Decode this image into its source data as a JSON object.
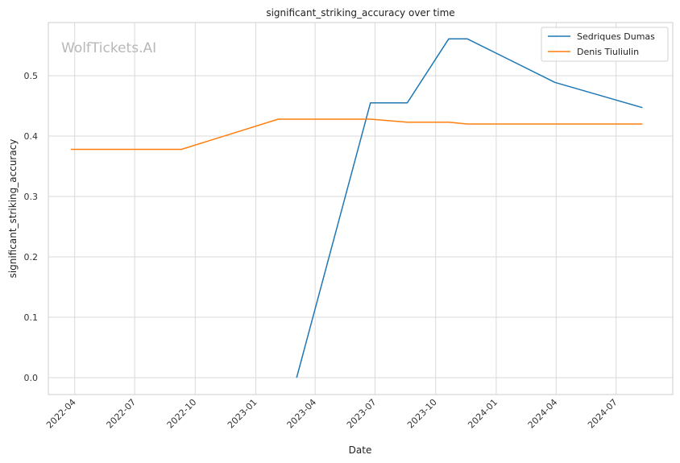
{
  "chart_data": {
    "type": "line",
    "title": "significant_striking_accuracy over time",
    "xlabel": "Date",
    "ylabel": "significant_striking_accuracy",
    "watermark": "WolfTickets.AI",
    "grid": true,
    "legend_position": "top-right",
    "x_range": [
      "2022-02-20",
      "2024-09-25"
    ],
    "ylim": [
      -0.028,
      0.588
    ],
    "x_ticks": [
      {
        "date": "2022-04-01",
        "label": "2022-04"
      },
      {
        "date": "2022-07-01",
        "label": "2022-07"
      },
      {
        "date": "2022-10-01",
        "label": "2022-10"
      },
      {
        "date": "2023-01-01",
        "label": "2023-01"
      },
      {
        "date": "2023-04-01",
        "label": "2023-04"
      },
      {
        "date": "2023-07-01",
        "label": "2023-07"
      },
      {
        "date": "2023-10-01",
        "label": "2023-10"
      },
      {
        "date": "2024-01-01",
        "label": "2024-01"
      },
      {
        "date": "2024-04-01",
        "label": "2024-04"
      },
      {
        "date": "2024-07-01",
        "label": "2024-07"
      }
    ],
    "y_ticks": [
      {
        "value": 0.0,
        "label": "0.0"
      },
      {
        "value": 0.1,
        "label": "0.1"
      },
      {
        "value": 0.2,
        "label": "0.2"
      },
      {
        "value": 0.3,
        "label": "0.3"
      },
      {
        "value": 0.4,
        "label": "0.4"
      },
      {
        "value": 0.5,
        "label": "0.5"
      }
    ],
    "series": [
      {
        "name": "Sedriques Dumas",
        "color": "#1f77b4",
        "points": [
          {
            "x": "2023-03-04",
            "y": 0.0
          },
          {
            "x": "2023-06-24",
            "y": 0.455
          },
          {
            "x": "2023-08-19",
            "y": 0.455
          },
          {
            "x": "2023-10-21",
            "y": 0.561
          },
          {
            "x": "2023-11-18",
            "y": 0.561
          },
          {
            "x": "2024-03-30",
            "y": 0.489
          },
          {
            "x": "2024-08-10",
            "y": 0.447
          }
        ]
      },
      {
        "name": "Denis Tiuliulin",
        "color": "#ff7f0e",
        "points": [
          {
            "x": "2022-03-26",
            "y": 0.378
          },
          {
            "x": "2022-09-10",
            "y": 0.378
          },
          {
            "x": "2023-02-04",
            "y": 0.428
          },
          {
            "x": "2023-06-24",
            "y": 0.428
          },
          {
            "x": "2023-08-19",
            "y": 0.423
          },
          {
            "x": "2023-10-21",
            "y": 0.423
          },
          {
            "x": "2023-11-18",
            "y": 0.42
          },
          {
            "x": "2024-03-30",
            "y": 0.42
          },
          {
            "x": "2024-08-10",
            "y": 0.42
          }
        ]
      }
    ]
  }
}
